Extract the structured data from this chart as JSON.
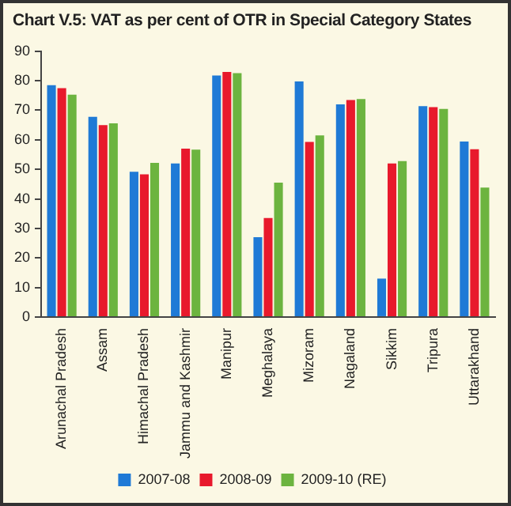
{
  "chart_data": {
    "type": "bar",
    "title": "Chart V.5: VAT as per cent of OTR in Special Category States",
    "categories": [
      "Arunachal Pradesh",
      "Assam",
      "Himachal Pradesh",
      "Jammu and Kashmir",
      "Manipur",
      "Meghalaya",
      "Mizoram",
      "Nagaland",
      "Sikkim",
      "Tripura",
      "Uttarakhand"
    ],
    "series": [
      {
        "name": "2007-08",
        "color": "#1f7ad6",
        "values": [
          78.5,
          67.8,
          49.2,
          52,
          81.8,
          27,
          79.8,
          72,
          13,
          71.4,
          59.4
        ]
      },
      {
        "name": "2008-09",
        "color": "#e8192c",
        "values": [
          77.5,
          65,
          48.3,
          57,
          83,
          33.5,
          59.3,
          73.5,
          52,
          71.1,
          56.8
        ]
      },
      {
        "name": "2009-10 (RE)",
        "color": "#6cb43f",
        "values": [
          75.3,
          65.6,
          52.2,
          56.7,
          82.6,
          45.5,
          61.5,
          73.8,
          52.8,
          70.5,
          43.8
        ]
      }
    ],
    "ylim": [
      0,
      90
    ],
    "yticks": [
      0,
      10,
      20,
      30,
      40,
      50,
      60,
      70,
      80,
      90
    ],
    "grid": false,
    "legend": "bottom"
  }
}
